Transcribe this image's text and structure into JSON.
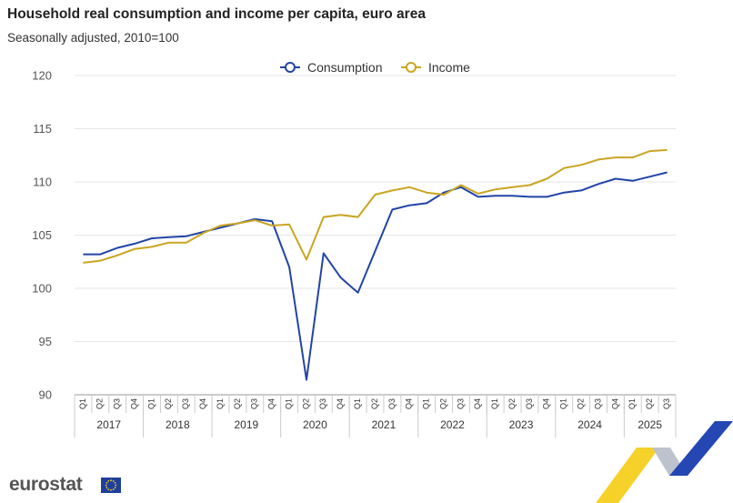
{
  "header": {
    "title": "Household real consumption and income per capita, euro area",
    "subtitle": "Seasonally adjusted, 2010=100"
  },
  "footer": {
    "logo_text": "eurostat",
    "flag_icon": "eu-flag-icon"
  },
  "colors": {
    "consumption": "#2244a6",
    "income": "#c9a521",
    "grid": "#e6e6e6",
    "axis": "#999999"
  },
  "chart_data": {
    "type": "line",
    "title": "Household real consumption and income per capita, euro area",
    "subtitle": "Seasonally adjusted, 2010=100",
    "xlabel": "",
    "ylabel": "",
    "ylim": [
      90,
      120
    ],
    "yticks": [
      90,
      95,
      100,
      105,
      110,
      115,
      120
    ],
    "grid": true,
    "legend_position": "top-center",
    "years": [
      "2017",
      "2018",
      "2019",
      "2020",
      "2021",
      "2022",
      "2023",
      "2024",
      "2025"
    ],
    "quarters_per_year": [
      4,
      4,
      4,
      4,
      4,
      4,
      4,
      4,
      3
    ],
    "categories": [
      "Q1",
      "Q2",
      "Q3",
      "Q4",
      "Q1",
      "Q2",
      "Q3",
      "Q4",
      "Q1",
      "Q2",
      "Q3",
      "Q4",
      "Q1",
      "Q2",
      "Q3",
      "Q4",
      "Q1",
      "Q2",
      "Q3",
      "Q4",
      "Q1",
      "Q2",
      "Q3",
      "Q4",
      "Q1",
      "Q2",
      "Q3",
      "Q4",
      "Q1",
      "Q2",
      "Q3",
      "Q4",
      "Q1",
      "Q2",
      "Q3"
    ],
    "series": [
      {
        "name": "Consumption",
        "color": "#2244a6",
        "values": [
          103.2,
          103.2,
          103.8,
          104.2,
          104.7,
          104.8,
          104.9,
          105.3,
          105.7,
          106.1,
          106.5,
          106.3,
          102.0,
          91.4,
          103.3,
          101.0,
          99.6,
          103.5,
          107.4,
          107.8,
          108.0,
          109.0,
          109.5,
          108.6,
          108.7,
          108.7,
          108.6,
          108.6,
          109.0,
          109.2,
          109.8,
          110.3,
          110.1,
          110.5,
          110.9
        ]
      },
      {
        "name": "Income",
        "color": "#c9a521",
        "values": [
          102.4,
          102.6,
          103.1,
          103.7,
          103.9,
          104.3,
          104.3,
          105.2,
          105.9,
          106.1,
          106.4,
          105.9,
          106.0,
          102.7,
          106.7,
          106.9,
          106.7,
          108.8,
          109.2,
          109.5,
          109.0,
          108.8,
          109.7,
          108.9,
          109.3,
          109.5,
          109.7,
          110.3,
          111.3,
          111.6,
          112.1,
          112.3,
          112.3,
          112.9,
          113.0
        ]
      }
    ]
  }
}
